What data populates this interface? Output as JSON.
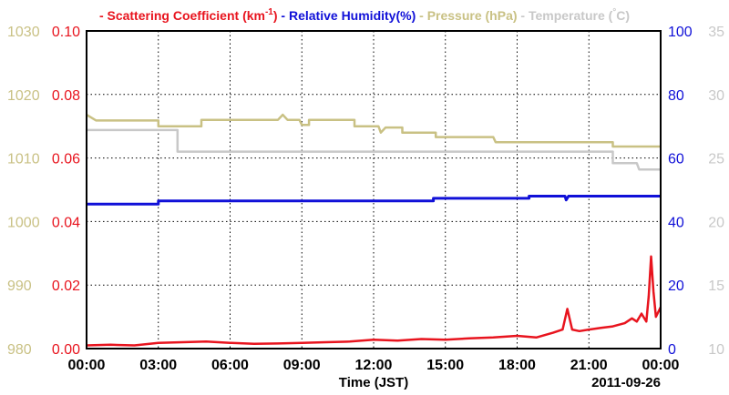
{
  "chart_data": {
    "type": "line",
    "legend": [
      {
        "name": "Scattering Coefficient (km",
        "sup": "-1",
        "tail": ")",
        "color": "#e8141e"
      },
      {
        "name": "Relative Humidity(%)",
        "color": "#1010d8"
      },
      {
        "name": "Pressure (hPa)",
        "color": "#c9c184"
      },
      {
        "name": "Temperature (",
        "sup": "°",
        "tail": "C)",
        "color": "#c8c8c8"
      }
    ],
    "legend_placement": "top",
    "xlabel": "Time (JST)",
    "date_label": "2011-09-26",
    "x_ticks": [
      "00:00",
      "03:00",
      "06:00",
      "09:00",
      "12:00",
      "15:00",
      "18:00",
      "21:00",
      "00:00"
    ],
    "xlim_hours": [
      0,
      24
    ],
    "grid": true,
    "axes": {
      "pressure": {
        "ticks": [
          "980",
          "990",
          "1000",
          "1010",
          "1020",
          "1030"
        ],
        "range": [
          980,
          1030
        ],
        "color": "#c9c184",
        "side": "left-outer"
      },
      "scattering": {
        "ticks": [
          "0.00",
          "0.02",
          "0.04",
          "0.06",
          "0.08",
          "0.10"
        ],
        "range": [
          0,
          0.1
        ],
        "color": "#e8141e",
        "side": "left-inner"
      },
      "humidity": {
        "ticks": [
          "0",
          "20",
          "40",
          "60",
          "80",
          "100"
        ],
        "range": [
          0,
          100
        ],
        "color": "#1010d8",
        "side": "right-inner"
      },
      "temperature": {
        "ticks": [
          "10",
          "15",
          "20",
          "25",
          "30",
          "35"
        ],
        "range": [
          10,
          35
        ],
        "color": "#c8c8c8",
        "side": "right-outer"
      }
    },
    "series": [
      {
        "name": "Scattering Coefficient",
        "axis": "scattering",
        "color": "#e8141e",
        "points": [
          [
            0,
            0.001
          ],
          [
            1,
            0.0012
          ],
          [
            2,
            0.001
          ],
          [
            3,
            0.0018
          ],
          [
            4,
            0.002
          ],
          [
            5,
            0.0022
          ],
          [
            6,
            0.0018
          ],
          [
            7,
            0.0015
          ],
          [
            8,
            0.0016
          ],
          [
            9,
            0.0018
          ],
          [
            10,
            0.002
          ],
          [
            11,
            0.0022
          ],
          [
            12,
            0.0028
          ],
          [
            13,
            0.0025
          ],
          [
            14,
            0.003
          ],
          [
            15,
            0.0028
          ],
          [
            16,
            0.0032
          ],
          [
            17,
            0.0035
          ],
          [
            18,
            0.004
          ],
          [
            18.8,
            0.0035
          ],
          [
            19.5,
            0.005
          ],
          [
            19.9,
            0.006
          ],
          [
            20.1,
            0.0125
          ],
          [
            20.3,
            0.006
          ],
          [
            20.6,
            0.0055
          ],
          [
            21,
            0.006
          ],
          [
            21.5,
            0.0065
          ],
          [
            22,
            0.007
          ],
          [
            22.5,
            0.008
          ],
          [
            22.8,
            0.0095
          ],
          [
            23,
            0.0085
          ],
          [
            23.2,
            0.011
          ],
          [
            23.4,
            0.0085
          ],
          [
            23.5,
            0.0165
          ],
          [
            23.6,
            0.029
          ],
          [
            23.7,
            0.018
          ],
          [
            23.8,
            0.01
          ],
          [
            24,
            0.013
          ]
        ]
      },
      {
        "name": "Relative Humidity",
        "axis": "humidity",
        "color": "#1010d8",
        "points": [
          [
            0,
            45.5
          ],
          [
            3,
            45.5
          ],
          [
            3,
            46.5
          ],
          [
            14.5,
            46.5
          ],
          [
            14.5,
            47.3
          ],
          [
            18.5,
            47.3
          ],
          [
            18.5,
            48
          ],
          [
            20,
            48
          ],
          [
            20.05,
            46.8
          ],
          [
            20.15,
            48
          ],
          [
            24,
            48
          ]
        ]
      },
      {
        "name": "Pressure",
        "axis": "pressure",
        "color": "#c9c184",
        "points": [
          [
            0,
            1016.8
          ],
          [
            0.4,
            1015.9
          ],
          [
            3,
            1015.9
          ],
          [
            3,
            1015
          ],
          [
            4.8,
            1015
          ],
          [
            4.8,
            1016
          ],
          [
            8,
            1016
          ],
          [
            8.2,
            1016.8
          ],
          [
            8.4,
            1016
          ],
          [
            8.9,
            1016
          ],
          [
            9,
            1015.2
          ],
          [
            9.3,
            1015.2
          ],
          [
            9.3,
            1016
          ],
          [
            11.2,
            1016
          ],
          [
            11.2,
            1015
          ],
          [
            12.2,
            1015
          ],
          [
            12.3,
            1014
          ],
          [
            12.5,
            1014.8
          ],
          [
            13.2,
            1014.8
          ],
          [
            13.2,
            1014
          ],
          [
            14.6,
            1014
          ],
          [
            14.6,
            1013.3
          ],
          [
            17,
            1013.3
          ],
          [
            17.1,
            1012.5
          ],
          [
            22,
            1012.5
          ],
          [
            22,
            1011.8
          ],
          [
            24,
            1011.8
          ]
        ]
      },
      {
        "name": "Temperature",
        "axis": "temperature",
        "color": "#c8c8c8",
        "points": [
          [
            0,
            27.2
          ],
          [
            3,
            27.2
          ],
          [
            3.8,
            27.2
          ],
          [
            3.8,
            25.5
          ],
          [
            22,
            25.5
          ],
          [
            22,
            24.6
          ],
          [
            23,
            24.6
          ],
          [
            23.1,
            24.1
          ],
          [
            24,
            24.1
          ]
        ]
      }
    ]
  }
}
